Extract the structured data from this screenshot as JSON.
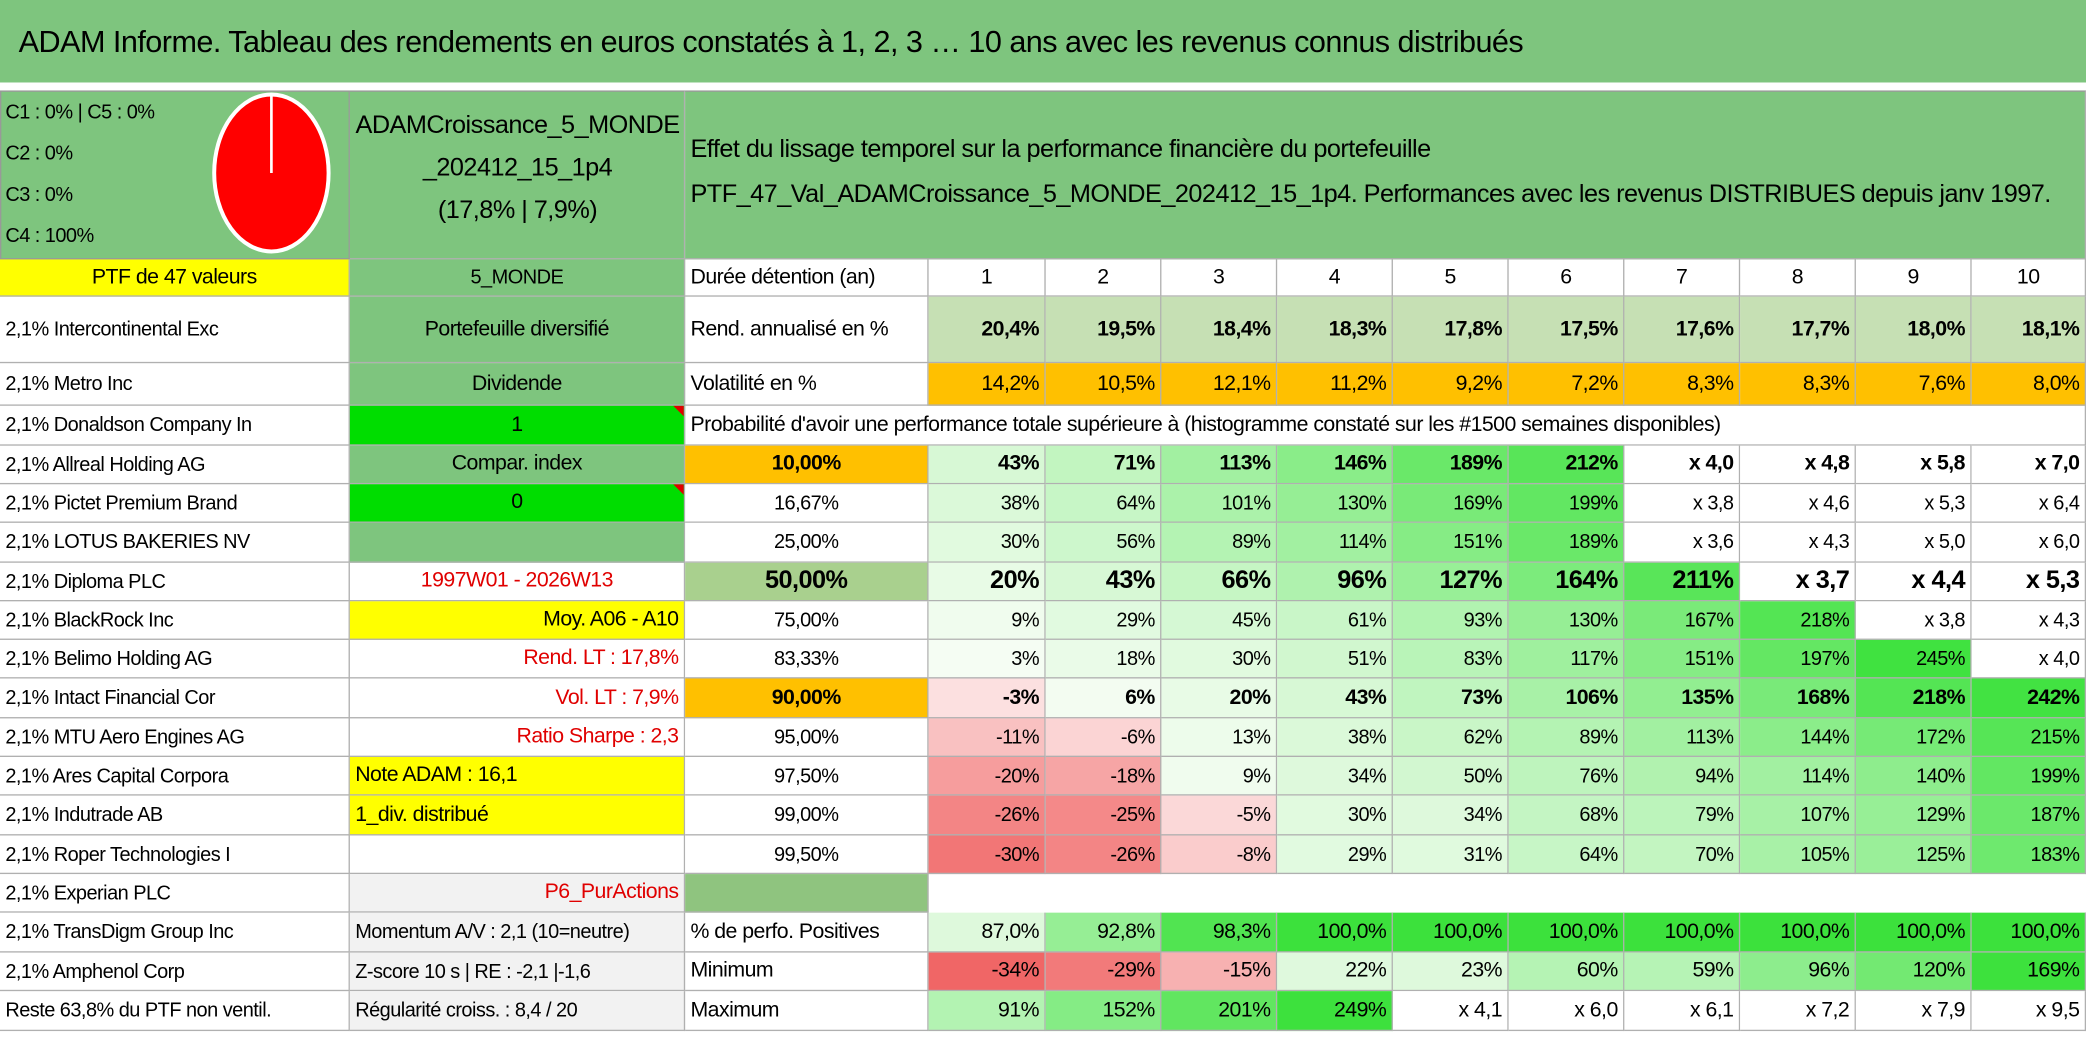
{
  "header": {
    "title": "ADAM Informe. Tableau des rendements en euros constatés à 1, 2, 3 … 10 ans avec les revenus connus distribués"
  },
  "allocation": [
    "C1 : 0% | C5 : 0%",
    "C2 : 0%",
    "C3 : 0%",
    "C4 : 100%"
  ],
  "portfolio": {
    "name_lines": [
      "ADAMCroissance_5_MONDE",
      "_202412_15_1p4",
      "(17,8% | 7,9%)"
    ],
    "count_label": "PTF de 47 valeurs",
    "zone": "5_MONDE"
  },
  "description": [
    "Effet du lissage temporel sur la performance financière du portefeuille",
    "PTF_47_Val_ADAMCroissance_5_MONDE_202412_15_1p4. Performances avec les revenus DISTRIBUES depuis janv 1997."
  ],
  "holdings": [
    {
      "name": "2,1% Intercontinental Exc",
      "info": "Portefeuille diversifié"
    },
    {
      "name": "2,1% Metro Inc",
      "info": "Dividende"
    },
    {
      "name": "2,1% Donaldson Company In",
      "info": "1"
    },
    {
      "name": "2,1% Allreal Holding AG",
      "info": "Compar. index"
    },
    {
      "name": "2,1% Pictet Premium Brand",
      "info": "0"
    },
    {
      "name": "2,1% LOTUS BAKERIES NV"
    },
    {
      "name": "2,1% Diploma PLC",
      "info": "1997W01 - 2026W13"
    },
    {
      "name": "2,1% BlackRock Inc",
      "info": "Moy. A06 - A10"
    },
    {
      "name": "2,1% Belimo Holding AG",
      "info": "Rend. LT : 17,8%"
    },
    {
      "name": "2,1% Intact Financial Cor",
      "info": "Vol. LT : 7,9%"
    },
    {
      "name": "2,1% MTU Aero Engines AG",
      "info": "Ratio Sharpe : 2,3"
    },
    {
      "name": "2,1% Ares Capital Corpora",
      "info": "Note ADAM : 16,1"
    },
    {
      "name": "2,1% Indutrade AB",
      "info": "1_div. distribué"
    },
    {
      "name": "2,1% Roper Technologies I"
    },
    {
      "name": "2,1% Experian PLC",
      "info": "P6_PurActions"
    },
    {
      "name": "2,1% TransDigm Group Inc",
      "info": "Momentum A/V : 2,1 (10=neutre)"
    },
    {
      "name": "2,1% Amphenol Corp",
      "info": "Z-score 10 s | RE : -2,1 |-1,6"
    },
    {
      "name": "Reste 63,8% du PTF non ventil.",
      "info": "Régularité croiss. : 8,4 / 20"
    }
  ],
  "table": {
    "duration_label": "Durée détention (an)",
    "years": [
      1,
      2,
      3,
      4,
      5,
      6,
      7,
      8,
      9,
      10
    ],
    "rend": {
      "label": "Rend. annualisé en %",
      "values": [
        "20,4%",
        "19,5%",
        "18,4%",
        "18,3%",
        "17,8%",
        "17,5%",
        "17,6%",
        "17,7%",
        "18,0%",
        "18,1%"
      ]
    },
    "vol": {
      "label": "Volatilité en %",
      "values": [
        "14,2%",
        "10,5%",
        "12,1%",
        "11,2%",
        "9,2%",
        "7,2%",
        "8,3%",
        "8,3%",
        "7,6%",
        "8,0%"
      ]
    },
    "prob_title": "Probabilité d'avoir une performance totale supérieure à (histogramme constaté sur les #1500 semaines disponibles)",
    "percentiles": [
      {
        "label": "10,00%",
        "values": [
          "43%",
          "71%",
          "113%",
          "146%",
          "189%",
          "212%",
          "x 4,0",
          "x 4,8",
          "x 5,8",
          "x 7,0"
        ]
      },
      {
        "label": "16,67%",
        "values": [
          "38%",
          "64%",
          "101%",
          "130%",
          "169%",
          "199%",
          "x 3,8",
          "x 4,6",
          "x 5,3",
          "x 6,4"
        ]
      },
      {
        "label": "25,00%",
        "values": [
          "30%",
          "56%",
          "89%",
          "114%",
          "151%",
          "189%",
          "x 3,6",
          "x 4,3",
          "x 5,0",
          "x 6,0"
        ]
      },
      {
        "label": "50,00%",
        "values": [
          "20%",
          "43%",
          "66%",
          "96%",
          "127%",
          "164%",
          "211%",
          "x 3,7",
          "x 4,4",
          "x 5,3"
        ]
      },
      {
        "label": "75,00%",
        "values": [
          "9%",
          "29%",
          "45%",
          "61%",
          "93%",
          "130%",
          "167%",
          "218%",
          "x 3,8",
          "x 4,3"
        ]
      },
      {
        "label": "83,33%",
        "values": [
          "3%",
          "18%",
          "30%",
          "51%",
          "83%",
          "117%",
          "151%",
          "197%",
          "245%",
          "x 4,0"
        ]
      },
      {
        "label": "90,00%",
        "values": [
          "-3%",
          "6%",
          "20%",
          "43%",
          "73%",
          "106%",
          "135%",
          "168%",
          "218%",
          "242%"
        ]
      },
      {
        "label": "95,00%",
        "values": [
          "-11%",
          "-6%",
          "13%",
          "38%",
          "62%",
          "89%",
          "113%",
          "144%",
          "172%",
          "215%"
        ]
      },
      {
        "label": "97,50%",
        "values": [
          "-20%",
          "-18%",
          "9%",
          "34%",
          "50%",
          "76%",
          "94%",
          "114%",
          "140%",
          "199%"
        ]
      },
      {
        "label": "99,00%",
        "values": [
          "-26%",
          "-25%",
          "-5%",
          "30%",
          "34%",
          "68%",
          "79%",
          "107%",
          "129%",
          "187%"
        ]
      },
      {
        "label": "99,50%",
        "values": [
          "-30%",
          "-26%",
          "-8%",
          "29%",
          "31%",
          "64%",
          "70%",
          "105%",
          "125%",
          "183%"
        ]
      }
    ],
    "positives": {
      "label": "% de perfo. Positives",
      "values": [
        "87,0%",
        "92,8%",
        "98,3%",
        "100,0%",
        "100,0%",
        "100,0%",
        "100,0%",
        "100,0%",
        "100,0%",
        "100,0%"
      ]
    },
    "minimum": {
      "label": "Minimum",
      "values": [
        "-34%",
        "-29%",
        "-15%",
        "22%",
        "23%",
        "60%",
        "59%",
        "96%",
        "120%",
        "169%"
      ]
    },
    "maximum": {
      "label": "Maximum",
      "values": [
        "91%",
        "152%",
        "201%",
        "249%",
        "x 4,1",
        "x 6,0",
        "x 6,1",
        "x 7,2",
        "x 7,9",
        "x 9,5"
      ]
    }
  }
}
